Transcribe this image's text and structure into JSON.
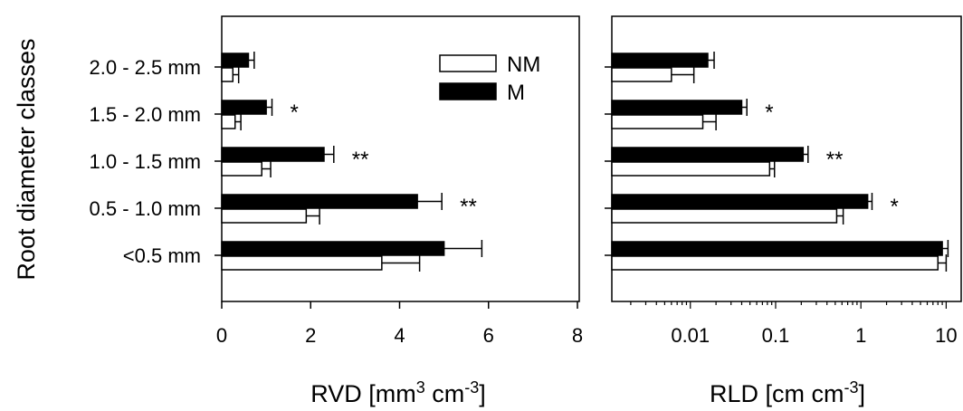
{
  "y_axis_title": "Root diameter classes",
  "chart_data": [
    {
      "type": "bar",
      "orientation": "horizontal",
      "categories": [
        "2.0 - 2.5 mm",
        "1.5 - 2.0 mm",
        "1.0 - 1.5 mm",
        "0.5 - 1.0 mm",
        "<0.5 mm"
      ],
      "series": [
        {
          "name": "NM",
          "color": "#ffffff",
          "values": [
            0.25,
            0.3,
            0.9,
            1.9,
            3.6
          ],
          "errors": [
            0.13,
            0.13,
            0.2,
            0.3,
            0.85
          ]
        },
        {
          "name": "M",
          "color": "#000000",
          "values": [
            0.6,
            1.0,
            2.3,
            4.4,
            5.0
          ],
          "errors": [
            0.13,
            0.13,
            0.22,
            0.55,
            0.85
          ]
        }
      ],
      "significance": [
        "",
        "*",
        "**",
        "**",
        ""
      ],
      "xlabel_main": "RVD [mm",
      "xlabel_sup1": "3",
      "xlabel_mid": " cm",
      "xlabel_sup2": "-3",
      "xlabel_end": "]",
      "xlim": [
        0,
        8
      ],
      "xticks": [
        "0",
        "2",
        "4",
        "6",
        "8"
      ],
      "legend": [
        "NM",
        "M"
      ],
      "legend_position": "top-right"
    },
    {
      "type": "bar",
      "orientation": "horizontal",
      "scale": "log",
      "categories": [
        "2.0 - 2.5 mm",
        "1.5 - 2.0 mm",
        "1.0 - 1.5 mm",
        "0.5 - 1.0 mm",
        "<0.5 mm"
      ],
      "series": [
        {
          "name": "NM",
          "color": "#ffffff",
          "values": [
            0.006,
            0.014,
            0.085,
            0.52,
            8.0
          ],
          "errors": [
            0.005,
            0.006,
            0.012,
            0.1,
            2.0
          ]
        },
        {
          "name": "M",
          "color": "#000000",
          "values": [
            0.016,
            0.04,
            0.21,
            1.2,
            9.0
          ],
          "errors": [
            0.003,
            0.006,
            0.03,
            0.15,
            1.5
          ]
        }
      ],
      "significance": [
        "",
        "*",
        "**",
        "*",
        ""
      ],
      "xlabel_main": "RLD [cm cm",
      "xlabel_sup1": "-3",
      "xlabel_end": "]",
      "xlim": [
        0.0012,
        15
      ],
      "xticks": [
        "0.01",
        "0.1",
        "1",
        "10"
      ]
    }
  ]
}
